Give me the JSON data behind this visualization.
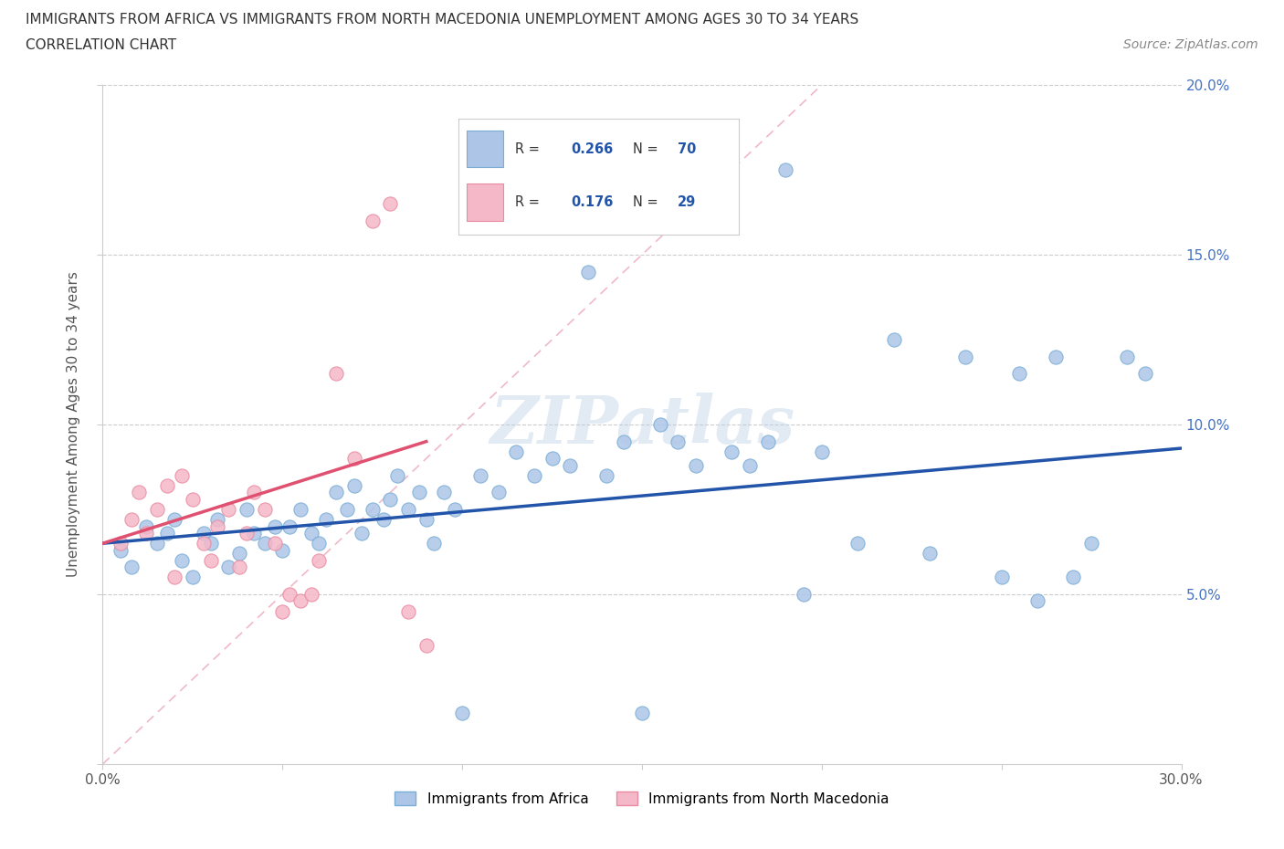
{
  "title_line1": "IMMIGRANTS FROM AFRICA VS IMMIGRANTS FROM NORTH MACEDONIA UNEMPLOYMENT AMONG AGES 30 TO 34 YEARS",
  "title_line2": "CORRELATION CHART",
  "source_text": "Source: ZipAtlas.com",
  "ylabel": "Unemployment Among Ages 30 to 34 years",
  "xlim": [
    0.0,
    0.3
  ],
  "ylim": [
    0.0,
    0.2
  ],
  "africa_color": "#adc6e8",
  "africa_edge_color": "#7aadd4",
  "macedonia_color": "#f5b8c8",
  "macedonia_edge_color": "#e88aa0",
  "africa_line_color": "#2255aa",
  "macedonia_line_color": "#e05070",
  "diagonal_color": "#f0b8c8",
  "ytick_color": "#4472c4",
  "R_africa": 0.266,
  "N_africa": 70,
  "R_macedonia": 0.176,
  "N_macedonia": 29,
  "legend_label_africa": "Immigrants from Africa",
  "legend_label_macedonia": "Immigrants from North Macedonia",
  "watermark": "ZIPatlas",
  "africa_x": [
    0.005,
    0.008,
    0.012,
    0.015,
    0.018,
    0.02,
    0.022,
    0.025,
    0.028,
    0.03,
    0.032,
    0.035,
    0.038,
    0.04,
    0.042,
    0.045,
    0.048,
    0.05,
    0.052,
    0.055,
    0.058,
    0.06,
    0.062,
    0.065,
    0.068,
    0.07,
    0.072,
    0.075,
    0.078,
    0.08,
    0.082,
    0.085,
    0.088,
    0.09,
    0.092,
    0.095,
    0.098,
    0.1,
    0.105,
    0.11,
    0.115,
    0.12,
    0.125,
    0.13,
    0.135,
    0.14,
    0.145,
    0.15,
    0.155,
    0.16,
    0.165,
    0.17,
    0.175,
    0.18,
    0.185,
    0.19,
    0.195,
    0.2,
    0.21,
    0.22,
    0.23,
    0.24,
    0.25,
    0.255,
    0.26,
    0.265,
    0.27,
    0.275,
    0.285,
    0.29
  ],
  "africa_y": [
    0.063,
    0.058,
    0.07,
    0.065,
    0.068,
    0.072,
    0.06,
    0.055,
    0.068,
    0.065,
    0.072,
    0.058,
    0.062,
    0.075,
    0.068,
    0.065,
    0.07,
    0.063,
    0.07,
    0.075,
    0.068,
    0.065,
    0.072,
    0.08,
    0.075,
    0.082,
    0.068,
    0.075,
    0.072,
    0.078,
    0.085,
    0.075,
    0.08,
    0.072,
    0.065,
    0.08,
    0.075,
    0.015,
    0.085,
    0.08,
    0.092,
    0.085,
    0.09,
    0.088,
    0.145,
    0.085,
    0.095,
    0.015,
    0.1,
    0.095,
    0.088,
    0.175,
    0.092,
    0.088,
    0.095,
    0.175,
    0.05,
    0.092,
    0.065,
    0.125,
    0.062,
    0.12,
    0.055,
    0.115,
    0.048,
    0.12,
    0.055,
    0.065,
    0.12,
    0.115
  ],
  "macedonia_x": [
    0.005,
    0.008,
    0.01,
    0.012,
    0.015,
    0.018,
    0.02,
    0.022,
    0.025,
    0.028,
    0.03,
    0.032,
    0.035,
    0.038,
    0.04,
    0.042,
    0.045,
    0.048,
    0.05,
    0.052,
    0.055,
    0.058,
    0.06,
    0.065,
    0.07,
    0.075,
    0.08,
    0.085,
    0.09
  ],
  "macedonia_y": [
    0.065,
    0.072,
    0.08,
    0.068,
    0.075,
    0.082,
    0.055,
    0.085,
    0.078,
    0.065,
    0.06,
    0.07,
    0.075,
    0.058,
    0.068,
    0.08,
    0.075,
    0.065,
    0.045,
    0.05,
    0.048,
    0.05,
    0.06,
    0.115,
    0.09,
    0.16,
    0.165,
    0.045,
    0.035
  ],
  "africa_trend": [
    0.065,
    0.093
  ],
  "macedonia_trend_x": [
    0.0,
    0.09
  ],
  "macedonia_trend_y": [
    0.065,
    0.095
  ]
}
